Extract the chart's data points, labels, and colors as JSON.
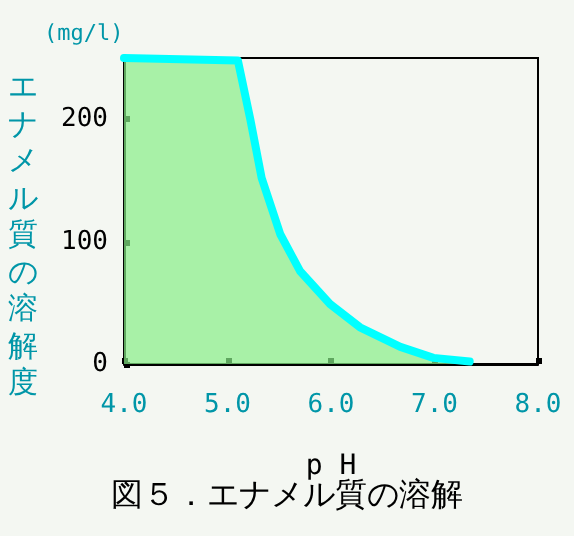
{
  "chart_data": {
    "type": "area",
    "title": "図５．エナメル質の溶解",
    "xlabel": "p H",
    "ylabel": "エナメル質の溶解度",
    "annotations": [
      "(mg/l)"
    ],
    "x": [
      4.0,
      5.1,
      5.22,
      5.33,
      5.51,
      5.7,
      5.99,
      6.28,
      6.67,
      6.99,
      7.34
    ],
    "series": [
      {
        "color": "#00ffff",
        "values": [
          250,
          248,
          200,
          152,
          106,
          76,
          49,
          30,
          14,
          5,
          2
        ]
      }
    ],
    "xlim": [
      4.0,
      8.0
    ],
    "xticks": [
      {
        "value": 4,
        "label": "4.0"
      },
      {
        "value": 5,
        "label": "5.0"
      },
      {
        "value": 6,
        "label": "6.0"
      },
      {
        "value": 7,
        "label": "7.0"
      },
      {
        "value": 8,
        "label": "8.0"
      }
    ],
    "ylim": [
      0,
      250
    ],
    "yticks": [
      0,
      100,
      200
    ],
    "grid": false,
    "marker": "none",
    "line_style": "solid"
  }
}
